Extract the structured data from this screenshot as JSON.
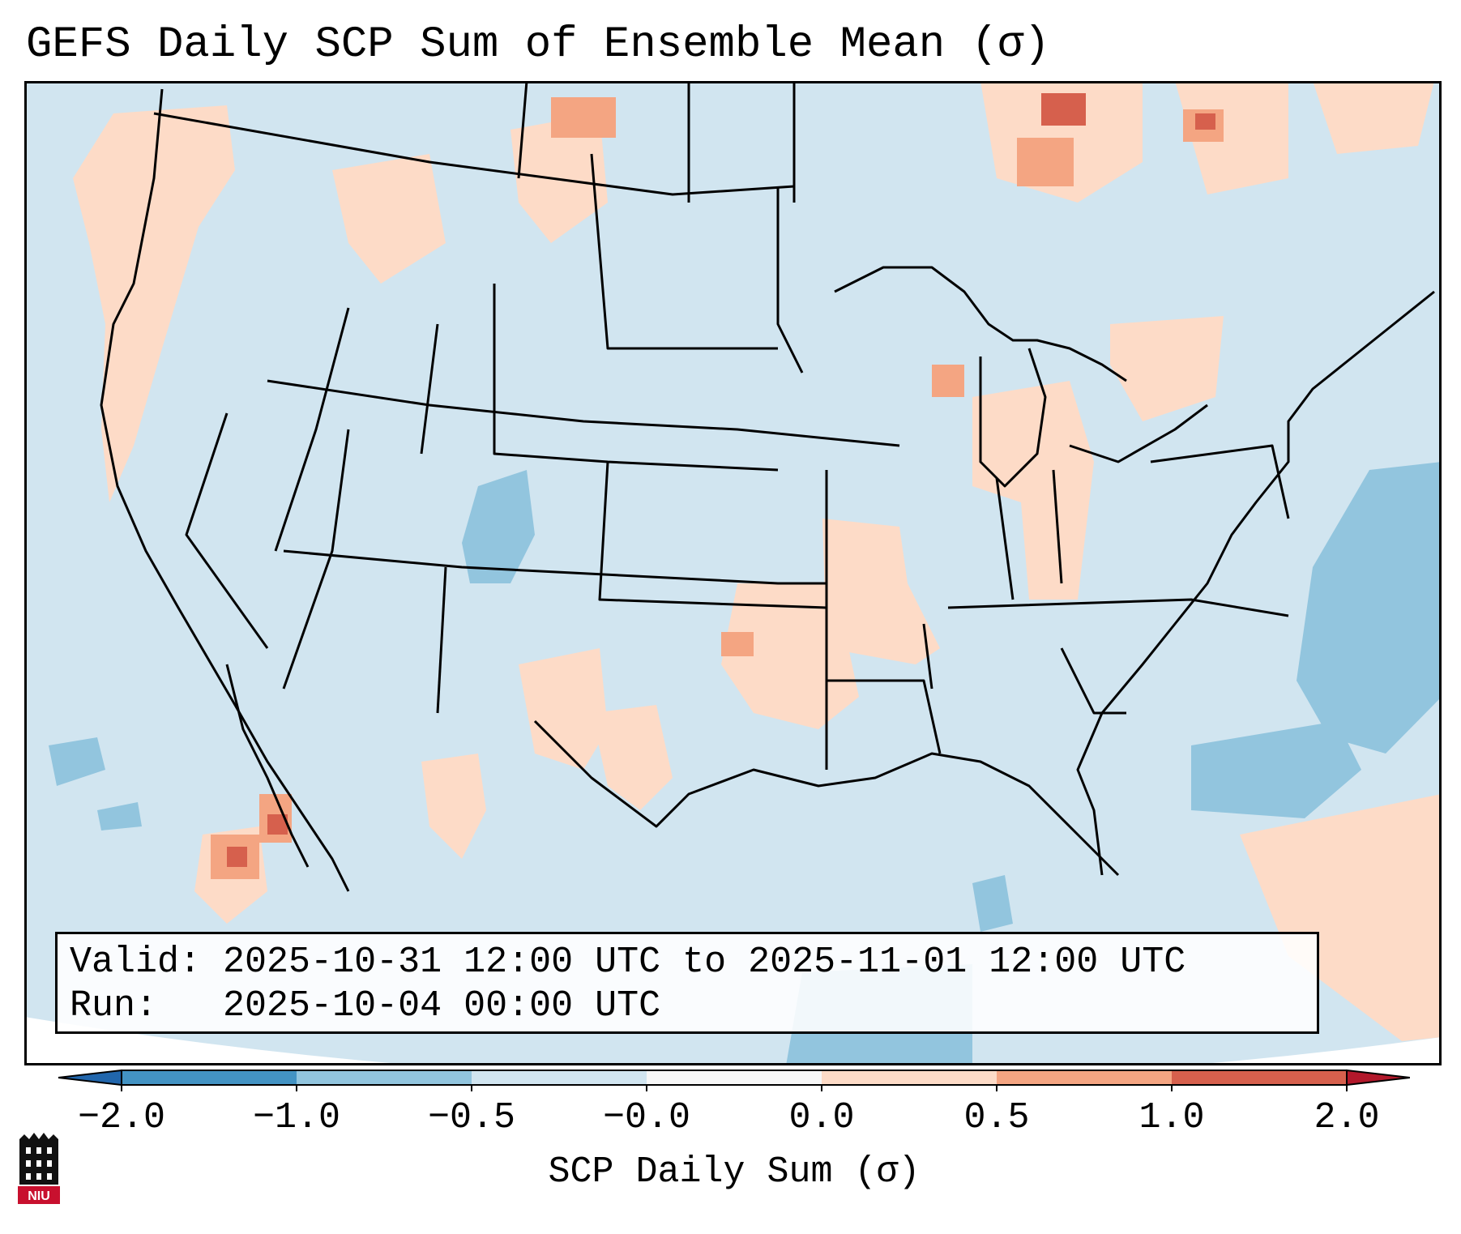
{
  "title": "GEFS Daily SCP Sum of Ensemble Mean (σ)",
  "info": {
    "valid_label": "Valid:",
    "valid_value": "2025-10-31 12:00 UTC to 2025-11-01 12:00 UTC",
    "run_label": "Run:",
    "run_value": "2025-10-04 00:00 UTC"
  },
  "colorbar": {
    "label": "SCP Daily Sum (σ)",
    "ticks": [
      "−2.0",
      "−1.0",
      "−0.5",
      "−0.0",
      "0.0",
      "0.5",
      "1.0",
      "2.0"
    ],
    "colors": [
      "#2166ac",
      "#4393c3",
      "#92c5de",
      "#d1e5f0",
      "#f7f7f7",
      "#fddbc7",
      "#f4a582",
      "#d6604d",
      "#b2182b"
    ]
  },
  "logo": {
    "text": "NIU",
    "name": "Northern Illinois University"
  },
  "colors": {
    "background": "#d1e5f0",
    "neutral": "#f7f7f7",
    "border": "#000000"
  }
}
